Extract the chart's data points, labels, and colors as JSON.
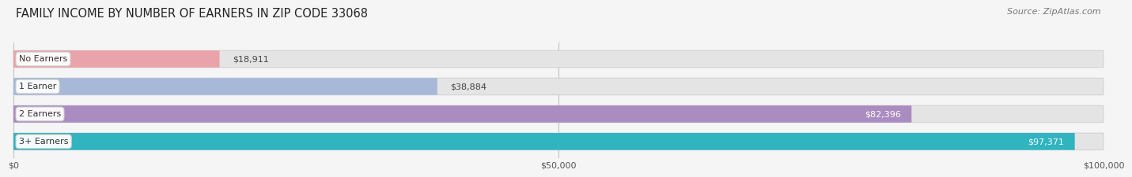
{
  "title": "FAMILY INCOME BY NUMBER OF EARNERS IN ZIP CODE 33068",
  "source": "Source: ZipAtlas.com",
  "categories": [
    "No Earners",
    "1 Earner",
    "2 Earners",
    "3+ Earners"
  ],
  "values": [
    18911,
    38884,
    82396,
    97371
  ],
  "labels": [
    "$18,911",
    "$38,884",
    "$82,396",
    "$97,371"
  ],
  "bar_colors": [
    "#e8a4aa",
    "#a8b8d8",
    "#aa8cc0",
    "#30b4c0"
  ],
  "bar_bg_color": "#e4e4e4",
  "xmax": 100000,
  "xticks": [
    0,
    50000,
    100000
  ],
  "xtick_labels": [
    "$0",
    "$50,000",
    "$100,000"
  ],
  "title_fontsize": 10.5,
  "source_fontsize": 8,
  "bar_label_fontsize": 8,
  "category_fontsize": 8,
  "axis_fontsize": 8,
  "background_color": "#f5f5f5",
  "bar_height": 0.62,
  "label_inside_threshold": 0.75
}
